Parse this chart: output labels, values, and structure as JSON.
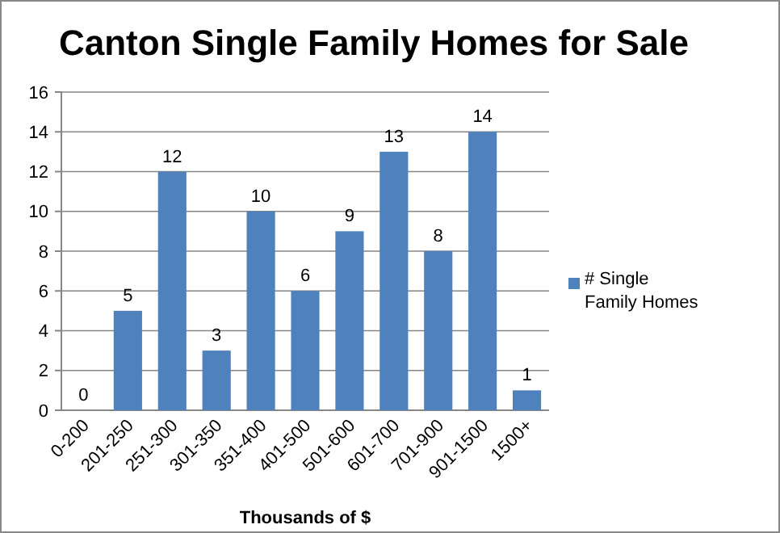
{
  "chart_data": {
    "type": "bar",
    "title": "Canton Single Family Homes for Sale",
    "xlabel": "Thousands of $",
    "categories": [
      "0-200",
      "201-250",
      "251-300",
      "301-350",
      "351-400",
      "401-500",
      "501-600",
      "601-700",
      "701-900",
      "901-1500",
      "1500+"
    ],
    "series": [
      {
        "name": "# Single Family Homes",
        "color": "#4f81bd",
        "values": [
          0,
          5,
          12,
          3,
          10,
          6,
          9,
          13,
          8,
          14,
          1
        ]
      }
    ],
    "ylim": [
      0,
      16
    ],
    "yticks": [
      0,
      2,
      4,
      6,
      8,
      10,
      12,
      14,
      16
    ],
    "grid": "y",
    "legend": "right",
    "data_labels": true
  }
}
